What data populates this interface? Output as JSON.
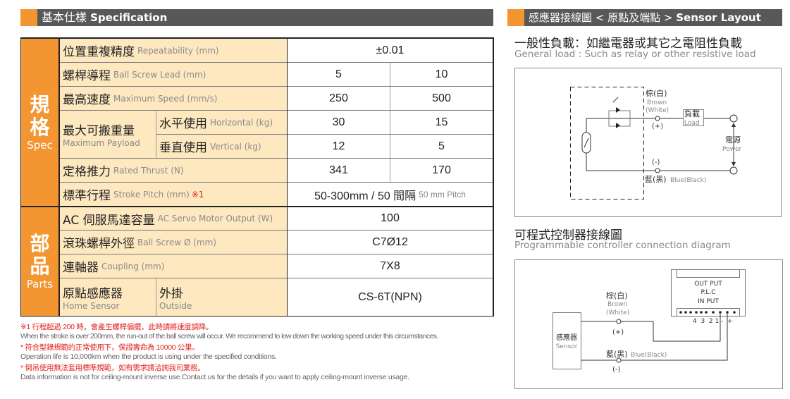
{
  "spec": {
    "header_cn": "基本仕樣",
    "header_en": "Specification",
    "group_spec": {
      "cn1": "規",
      "cn2": "格",
      "en": "Spec"
    },
    "group_parts": {
      "cn1": "部",
      "cn2": "品",
      "en": "Parts"
    },
    "rows": [
      {
        "cn": "位置重複精度",
        "en": "Repeatability (mm)",
        "values": [
          "±0.01"
        ]
      },
      {
        "cn": "螺桿導程",
        "en": "Ball Screw Lead (mm)",
        "values": [
          "5",
          "10"
        ]
      },
      {
        "cn": "最高速度",
        "en": "Maximum Speed (mm/s)",
        "values": [
          "250",
          "500"
        ]
      },
      {
        "cn": "最大可搬重量",
        "en": "Maximum Payload",
        "sub": [
          {
            "cn": "水平使用",
            "en": "Horizontal (kg)",
            "values": [
              "30",
              "15"
            ]
          },
          {
            "cn": "垂直使用",
            "en": "Vertical (kg)",
            "values": [
              "12",
              "5"
            ]
          }
        ]
      },
      {
        "cn": "定格推力",
        "en": "Rated Thrust (N)",
        "values": [
          "341",
          "170"
        ]
      },
      {
        "cn": "標準行程",
        "en": "Stroke Pitch (mm)",
        "mark": "※1",
        "value": "50-300mm / 50 間隔",
        "value_en": "50 mm Pitch"
      },
      {
        "cn": "AC 伺服馬達容量",
        "en": "AC Servo Motor Output (W)",
        "values": [
          "100"
        ]
      },
      {
        "cn": "滾珠螺桿外徑",
        "en": "Ball Screw Ø (mm)",
        "values": [
          "C7Ø12"
        ]
      },
      {
        "cn": "連軸器",
        "en": "Coupling (mm)",
        "values": [
          "7X8"
        ]
      },
      {
        "cn": "原點感應器",
        "en": "Home Sensor",
        "sub_cn": "外掛",
        "sub_en": "Outside",
        "values": [
          "CS-6T(NPN)"
        ]
      }
    ],
    "notes": [
      {
        "text": "※1 行程超過 200 時，會產生螺桿偏擺，此時請將速度調降。",
        "color": "red"
      },
      {
        "text": "When the stroke is over 200mm, the run-out of the ball screw will occur. We recommend to low down the working speed under this circumstances.",
        "color": "gray"
      },
      {
        "text": "* 符合型錄規範的正常使用下，保證壽命為 10000 公里。",
        "color": "red"
      },
      {
        "text": "Operation life is 10,000km when the product is using under the specified conditions.",
        "color": "gray"
      },
      {
        "text": "* 倒吊使用無法套用標準規範，如有需求請洽詢我司業務。",
        "color": "red"
      },
      {
        "text": "Data information is not for ceiling-mount inverse use.Contact us for the details if you want to apply ceiling-mount inverse usage.",
        "color": "gray"
      }
    ]
  },
  "sensor": {
    "header_cn": "感應器接線圖 < 原點及端點 >",
    "header_en": "Sensor Layout",
    "general": {
      "title_cn": "一般性負載：如繼電器或其它之電阻性負載",
      "title_en": "General load : Such as relay or other resistive load",
      "brown_cn": "棕(白)",
      "brown_en": "Brown",
      "white_en": "(White)",
      "plus": "(+)",
      "minus": "(-)",
      "blue_cn": "藍(黑)",
      "blue_en": "Blue(Black)",
      "load_cn": "負載",
      "load_en": "Load",
      "power_cn": "電源",
      "power_en": "Power"
    },
    "plc": {
      "title_cn": "可程式控制器接線圖",
      "title_en": "Programmable controller connection diagram",
      "brown_cn": "棕(白)",
      "brown_en": "Brown",
      "white_en": "(White)",
      "plus": "(+)",
      "minus": "(-)",
      "blue_cn": "藍(黑)",
      "blue_en": "Blue(Black)",
      "sensor_cn": "感應器",
      "sensor_en": "Sensor",
      "output": "OUT PUT",
      "plc": "P.L.C",
      "input": "IN PUT",
      "terminals": "4  3  2 1 -  +"
    }
  },
  "colors": {
    "orange": "#f39530",
    "header_gray": "#58585a",
    "label_bg": "#fde8c0",
    "note_red": "#e0201c"
  }
}
